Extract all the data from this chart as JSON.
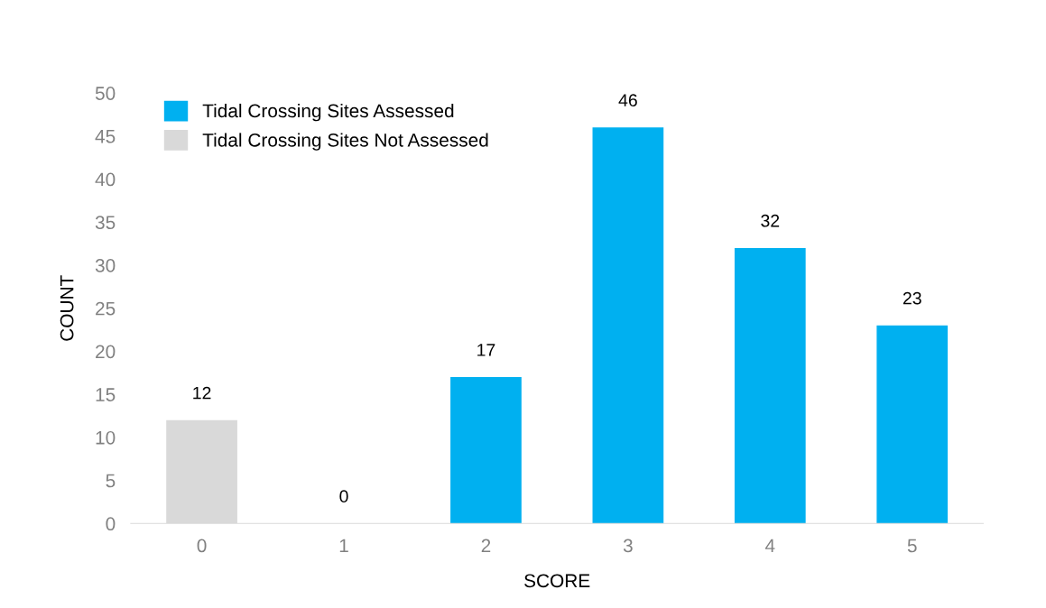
{
  "chart_data": {
    "type": "bar",
    "xlabel": "SCORE",
    "ylabel": "COUNT",
    "categories": [
      "0",
      "1",
      "2",
      "3",
      "4",
      "5"
    ],
    "series": [
      {
        "name": "Tidal Crossing Sites Assessed",
        "color": "#00b0f0",
        "values": [
          null,
          0,
          17,
          46,
          32,
          23
        ]
      },
      {
        "name": "Tidal Crossing Sites Not Assessed",
        "color": "#d9d9d9",
        "values": [
          12,
          null,
          null,
          null,
          null,
          null
        ]
      }
    ],
    "ylim": [
      0,
      50
    ],
    "yticks": [
      0,
      5,
      10,
      15,
      20,
      25,
      30,
      35,
      40,
      45,
      50
    ],
    "grid": false,
    "legend": "top left",
    "data_labels": true
  }
}
